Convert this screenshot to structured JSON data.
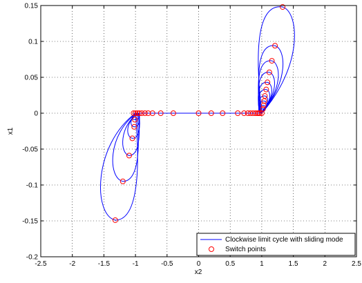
{
  "chart_data": {
    "type": "line",
    "title": "",
    "xlabel": "x2",
    "ylabel": "x1",
    "xlim": [
      -2.5,
      2.5
    ],
    "ylim": [
      -0.2,
      0.15
    ],
    "grid": true,
    "grid_style": "dotted",
    "legend_position": "bottom-right",
    "x_ticks": [
      -2.5,
      -2,
      -1.5,
      -1,
      -0.5,
      0,
      0.5,
      1,
      1.5,
      2,
      2.5
    ],
    "x_tick_labels": [
      "-2.5",
      "-2",
      "-1.5",
      "-1",
      "-0.5",
      "0",
      "0.5",
      "1",
      "1.5",
      "2",
      "2.5"
    ],
    "y_ticks": [
      -0.2,
      -0.15,
      -0.1,
      -0.05,
      0,
      0.05,
      0.1,
      0.15
    ],
    "y_tick_labels": [
      "-0.2",
      "-0.15",
      "-0.1",
      "-0.05",
      "0",
      "0.05",
      "0.1",
      "0.15"
    ],
    "colors": {
      "trajectory": "#0000ff",
      "switch": "#ff0000",
      "grid": "#000000",
      "axes": "#000000"
    },
    "trajectory": {
      "name": "Clockwise limit cycle with sliding mode",
      "upper_loops": [
        {
          "x0": 1.0,
          "peak_x": 1.33,
          "peak_y": 0.148
        },
        {
          "x0": 0.99,
          "peak_x": 1.21,
          "peak_y": 0.094
        },
        {
          "x0": 0.98,
          "peak_x": 1.16,
          "peak_y": 0.073
        },
        {
          "x0": 0.975,
          "peak_x": 1.12,
          "peak_y": 0.057
        },
        {
          "x0": 0.97,
          "peak_x": 1.09,
          "peak_y": 0.043
        },
        {
          "x0": 0.97,
          "peak_x": 1.07,
          "peak_y": 0.033
        },
        {
          "x0": 0.97,
          "peak_x": 1.05,
          "peak_y": 0.024
        },
        {
          "x0": 0.97,
          "peak_x": 1.04,
          "peak_y": 0.017
        },
        {
          "x0": 0.97,
          "peak_x": 1.03,
          "peak_y": 0.011
        },
        {
          "x0": 0.97,
          "peak_x": 1.02,
          "peak_y": 0.006
        }
      ],
      "lower_loops": [
        {
          "x0": -1.0,
          "peak_x": -1.32,
          "peak_y": -0.149
        },
        {
          "x0": -0.98,
          "peak_x": -1.2,
          "peak_y": -0.095
        },
        {
          "x0": -0.96,
          "peak_x": -1.1,
          "peak_y": -0.059
        },
        {
          "x0": -0.95,
          "peak_x": -1.05,
          "peak_y": -0.035
        },
        {
          "x0": -0.95,
          "peak_x": -1.02,
          "peak_y": -0.019
        },
        {
          "x0": -0.95,
          "peak_x": -1.01,
          "peak_y": -0.009
        }
      ]
    },
    "switch_points": {
      "name": "Switch points",
      "points": [
        [
          1.33,
          0.148
        ],
        [
          1.21,
          0.094
        ],
        [
          1.16,
          0.073
        ],
        [
          1.12,
          0.057
        ],
        [
          1.09,
          0.043
        ],
        [
          1.07,
          0.033
        ],
        [
          1.05,
          0.024
        ],
        [
          1.04,
          0.017
        ],
        [
          1.03,
          0.011
        ],
        [
          1.02,
          0.006
        ],
        [
          -1.32,
          -0.149
        ],
        [
          -1.2,
          -0.095
        ],
        [
          -1.1,
          -0.059
        ],
        [
          -1.05,
          -0.035
        ],
        [
          -1.02,
          -0.019
        ],
        [
          -1.01,
          -0.009
        ],
        [
          0.0,
          0.0
        ],
        [
          0.2,
          0.0
        ],
        [
          0.38,
          0.0
        ],
        [
          0.62,
          0.0
        ],
        [
          0.72,
          0.0
        ],
        [
          0.78,
          0.0
        ],
        [
          0.82,
          0.0
        ],
        [
          0.86,
          0.0
        ],
        [
          0.9,
          0.0
        ],
        [
          0.93,
          0.0
        ],
        [
          0.95,
          0.0
        ],
        [
          0.97,
          0.0
        ],
        [
          1.0,
          0.0
        ],
        [
          -0.4,
          0.0
        ],
        [
          -0.6,
          0.0
        ],
        [
          -0.73,
          0.0
        ],
        [
          -0.8,
          0.0
        ],
        [
          -0.85,
          0.0
        ],
        [
          -0.9,
          0.0
        ],
        [
          -0.94,
          0.0
        ],
        [
          -0.97,
          0.0
        ],
        [
          -1.0,
          0.0
        ],
        [
          -1.03,
          0.0
        ]
      ]
    }
  }
}
